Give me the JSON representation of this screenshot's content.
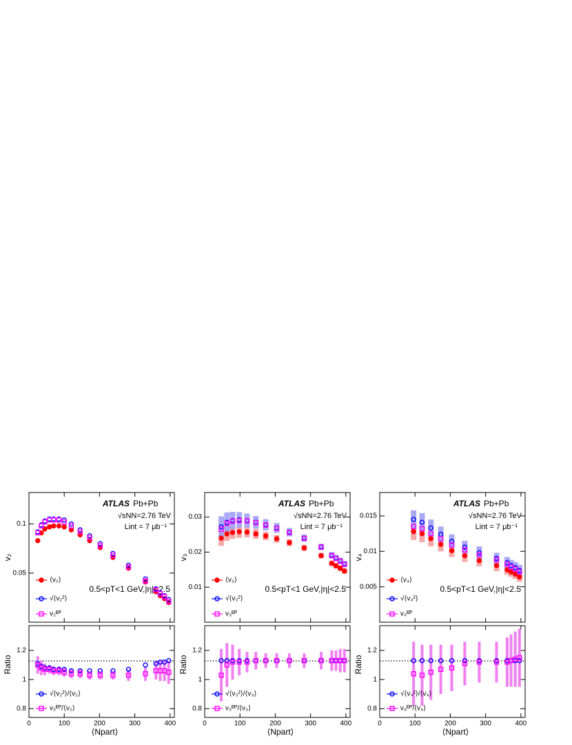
{
  "chart_data": [
    {
      "type": "scatter",
      "y_label": "v₂",
      "annotations": {
        "experiment": "ATLAS",
        "system": "Pb+Pb",
        "energy": "√sNN=2.76 TeV",
        "lumi": "Lint = 7 μb⁻¹",
        "kinematics": "0.5<pT<1 GeV,|η|<2.5"
      },
      "xlim": [
        0,
        412
      ],
      "xticks": [
        0,
        100,
        200,
        300,
        400
      ],
      "ylim": [
        0,
        0.132
      ],
      "yticks": [
        0.05,
        0.1
      ],
      "x": [
        25,
        35,
        45,
        58,
        70,
        85,
        100,
        120,
        145,
        172,
        202,
        238,
        282,
        330,
        360,
        372,
        384,
        396
      ],
      "series": [
        {
          "name": "⟨v₂⟩",
          "color": "#ff0000",
          "marker": "filled-circle",
          "values": [
            0.083,
            0.091,
            0.095,
            0.097,
            0.098,
            0.098,
            0.097,
            0.094,
            0.089,
            0.083,
            0.076,
            0.066,
            0.055,
            0.041,
            0.031,
            0.027,
            0.024,
            0.02
          ]
        },
        {
          "name": "√⟨v₂²⟩",
          "color": "#0000ff",
          "marker": "open-circle",
          "values": [
            0.092,
            0.099,
            0.103,
            0.105,
            0.105,
            0.105,
            0.104,
            0.1,
            0.094,
            0.088,
            0.08,
            0.07,
            0.058,
            0.044,
            0.034,
            0.03,
            0.027,
            0.023
          ]
        },
        {
          "name": "v₂ᴱᴾ",
          "color": "#ff00ff",
          "marker": "open-square",
          "values": [
            0.091,
            0.098,
            0.102,
            0.104,
            0.104,
            0.104,
            0.102,
            0.098,
            0.092,
            0.086,
            0.078,
            0.068,
            0.056,
            0.042,
            0.033,
            0.029,
            0.026,
            0.021
          ]
        }
      ]
    },
    {
      "type": "scatter",
      "y_label": "Ratio",
      "x_label": "⟨Npart⟩",
      "ref_line": 1.128,
      "xlim": [
        0,
        412
      ],
      "xticks": [
        0,
        100,
        200,
        300,
        400
      ],
      "ylim": [
        0.74,
        1.37
      ],
      "yticks": [
        0.8,
        1,
        1.2
      ],
      "x": [
        25,
        35,
        45,
        58,
        70,
        85,
        100,
        120,
        145,
        172,
        202,
        238,
        282,
        330,
        360,
        372,
        384,
        396
      ],
      "series": [
        {
          "name": "√⟨v₂²⟩/⟨v₂⟩",
          "color": "#0000ff",
          "marker": "open-circle",
          "values": [
            1.11,
            1.09,
            1.08,
            1.08,
            1.07,
            1.07,
            1.07,
            1.06,
            1.06,
            1.06,
            1.06,
            1.06,
            1.07,
            1.1,
            1.11,
            1.12,
            1.12,
            1.13
          ]
        },
        {
          "name": "v₂ᴱᴾ/⟨v₂⟩",
          "color": "#ff00ff",
          "err_color": "#f080f0",
          "marker": "open-square",
          "values": [
            1.1,
            1.08,
            1.07,
            1.07,
            1.06,
            1.06,
            1.05,
            1.04,
            1.04,
            1.03,
            1.03,
            1.03,
            1.03,
            1.04,
            1.06,
            1.06,
            1.06,
            1.05
          ],
          "errors": [
            0.06,
            0.05,
            0.04,
            0.03,
            0.03,
            0.03,
            0.03,
            0.03,
            0.03,
            0.03,
            0.03,
            0.03,
            0.04,
            0.05,
            0.06,
            0.07,
            0.07,
            0.08
          ]
        }
      ]
    },
    {
      "type": "scatter",
      "y_label": "v₃",
      "annotations": {
        "experiment": "ATLAS",
        "system": "Pb+Pb",
        "energy": "√sNN=2.76 TeV",
        "lumi": "Lint = 7 μb⁻¹",
        "kinematics": "0.5<pT<1 GeV,|η|<2.5"
      },
      "xlim": [
        0,
        412
      ],
      "xticks": [
        0,
        100,
        200,
        300,
        400
      ],
      "ylim": [
        0,
        0.037
      ],
      "yticks": [
        0.01,
        0.02,
        0.03
      ],
      "x": [
        47,
        63,
        79,
        98,
        120,
        145,
        173,
        204,
        240,
        282,
        330,
        360,
        372,
        384,
        396
      ],
      "series": [
        {
          "name": "⟨v₃⟩",
          "color": "#ff0000",
          "sys_color": "#f4a0a0",
          "marker": "filled-circle",
          "values": [
            0.024,
            0.0252,
            0.0256,
            0.0258,
            0.0257,
            0.0252,
            0.0246,
            0.0238,
            0.0227,
            0.0212,
            0.019,
            0.0168,
            0.0161,
            0.0154,
            0.0146
          ],
          "sys": [
            0.0022,
            0.002,
            0.0018,
            0.0017,
            0.0015,
            0.0014,
            0.0012,
            0.0011,
            0.001,
            0.0009,
            0.0008,
            0.0008,
            0.0008,
            0.0008,
            0.0008
          ]
        },
        {
          "name": "√⟨v₃²⟩",
          "color": "#0000ff",
          "sys_color": "#a0a0f4",
          "marker": "open-circle",
          "values": [
            0.0272,
            0.0285,
            0.029,
            0.0292,
            0.029,
            0.0285,
            0.0278,
            0.0269,
            0.0257,
            0.024,
            0.0215,
            0.0191,
            0.0183,
            0.0175,
            0.0166
          ],
          "sys": [
            0.003,
            0.0028,
            0.0025,
            0.0022,
            0.002,
            0.0018,
            0.0016,
            0.0014,
            0.0012,
            0.001,
            0.0009,
            0.0009,
            0.0009,
            0.0009,
            0.0009
          ]
        },
        {
          "name": "v₃ᴱᴾ",
          "color": "#ff00ff",
          "marker": "open-square",
          "values": [
            0.0265,
            0.0282,
            0.0288,
            0.029,
            0.0289,
            0.0284,
            0.0277,
            0.0268,
            0.0256,
            0.0239,
            0.0214,
            0.019,
            0.0182,
            0.0174,
            0.0165
          ]
        }
      ]
    },
    {
      "type": "scatter",
      "y_label": "Ratio",
      "x_label": "⟨Npart⟩",
      "ref_line": 1.128,
      "xlim": [
        0,
        412
      ],
      "xticks": [
        0,
        100,
        200,
        300,
        400
      ],
      "ylim": [
        0.74,
        1.37
      ],
      "yticks": [
        0.8,
        1,
        1.2
      ],
      "x": [
        47,
        63,
        79,
        98,
        120,
        145,
        173,
        204,
        240,
        282,
        330,
        360,
        372,
        384,
        396
      ],
      "series": [
        {
          "name": "√⟨v₃²⟩/⟨v₃⟩",
          "color": "#0000ff",
          "marker": "open-circle",
          "values": [
            1.13,
            1.13,
            1.13,
            1.13,
            1.13,
            1.13,
            1.13,
            1.13,
            1.13,
            1.13,
            1.13,
            1.13,
            1.13,
            1.13,
            1.13
          ]
        },
        {
          "name": "v₃ᴱᴾ/⟨v₃⟩",
          "color": "#ff00ff",
          "err_color": "#f080f0",
          "marker": "open-square",
          "values": [
            1.03,
            1.1,
            1.12,
            1.12,
            1.12,
            1.13,
            1.13,
            1.13,
            1.13,
            1.13,
            1.13,
            1.13,
            1.13,
            1.13,
            1.13
          ],
          "errors": [
            0.18,
            0.15,
            0.12,
            0.09,
            0.07,
            0.06,
            0.05,
            0.05,
            0.05,
            0.05,
            0.06,
            0.07,
            0.07,
            0.08,
            0.08
          ]
        }
      ]
    },
    {
      "type": "scatter",
      "y_label": "v₄",
      "annotations": {
        "experiment": "ATLAS",
        "system": "Pb+Pb",
        "energy": "√sNN=2.76 TeV",
        "lumi": "Lint = 7 μb⁻¹",
        "kinematics": "0.5<pT<1 GeV,|η|<2.5"
      },
      "xlim": [
        0,
        412
      ],
      "xticks": [
        0,
        100,
        200,
        300,
        400
      ],
      "ylim": [
        0,
        0.0183
      ],
      "yticks": [
        0.005,
        0.01,
        0.015
      ],
      "x": [
        96,
        120,
        145,
        173,
        204,
        241,
        282,
        331,
        361,
        372,
        384,
        396
      ],
      "series": [
        {
          "name": "⟨v₄⟩",
          "color": "#ff0000",
          "sys_color": "#f4a0a0",
          "marker": "filled-circle",
          "values": [
            0.0128,
            0.0125,
            0.0118,
            0.011,
            0.0101,
            0.0094,
            0.0087,
            0.008,
            0.0074,
            0.0071,
            0.0068,
            0.0064
          ],
          "sys": [
            0.0012,
            0.0012,
            0.0011,
            0.001,
            0.0009,
            0.0009,
            0.0008,
            0.0008,
            0.0007,
            0.0007,
            0.0007,
            0.0007
          ]
        },
        {
          "name": "√⟨v₄²⟩",
          "color": "#0000ff",
          "sys_color": "#a0a0f4",
          "marker": "open-circle",
          "values": [
            0.0145,
            0.0141,
            0.0133,
            0.0124,
            0.0114,
            0.0106,
            0.0098,
            0.009,
            0.0084,
            0.008,
            0.0077,
            0.0073
          ],
          "sys": [
            0.0013,
            0.0013,
            0.0012,
            0.0011,
            0.001,
            0.0009,
            0.0009,
            0.0008,
            0.0008,
            0.0008,
            0.0008,
            0.0008
          ]
        },
        {
          "name": "v₄ᴱᴾ",
          "color": "#ff00ff",
          "marker": "open-square",
          "values": [
            0.0135,
            0.0132,
            0.0125,
            0.0118,
            0.0109,
            0.0102,
            0.0095,
            0.0088,
            0.0082,
            0.0078,
            0.0075,
            0.0071
          ]
        }
      ]
    },
    {
      "type": "scatter",
      "y_label": "Ratio",
      "x_label": "⟨Npart⟩",
      "ref_line": 1.128,
      "xlim": [
        0,
        412
      ],
      "xticks": [
        0,
        100,
        200,
        300,
        400
      ],
      "ylim": [
        0.74,
        1.37
      ],
      "yticks": [
        0.8,
        1,
        1.2
      ],
      "x": [
        96,
        120,
        145,
        173,
        204,
        241,
        282,
        331,
        361,
        372,
        384,
        396
      ],
      "series": [
        {
          "name": "√⟨v₄²⟩/⟨v₄⟩",
          "color": "#0000ff",
          "marker": "open-circle",
          "values": [
            1.13,
            1.13,
            1.13,
            1.13,
            1.13,
            1.13,
            1.13,
            1.13,
            1.13,
            1.13,
            1.13,
            1.13
          ]
        },
        {
          "name": "v₄ᴱᴾ/⟨v₄⟩",
          "color": "#ff00ff",
          "err_color": "#f080f0",
          "marker": "open-square",
          "values": [
            1.04,
            1.03,
            1.05,
            1.07,
            1.08,
            1.11,
            1.12,
            1.12,
            1.12,
            1.13,
            1.14,
            1.15
          ],
          "errors": [
            0.22,
            0.21,
            0.19,
            0.17,
            0.16,
            0.15,
            0.14,
            0.14,
            0.17,
            0.18,
            0.19,
            0.2
          ]
        }
      ]
    }
  ]
}
